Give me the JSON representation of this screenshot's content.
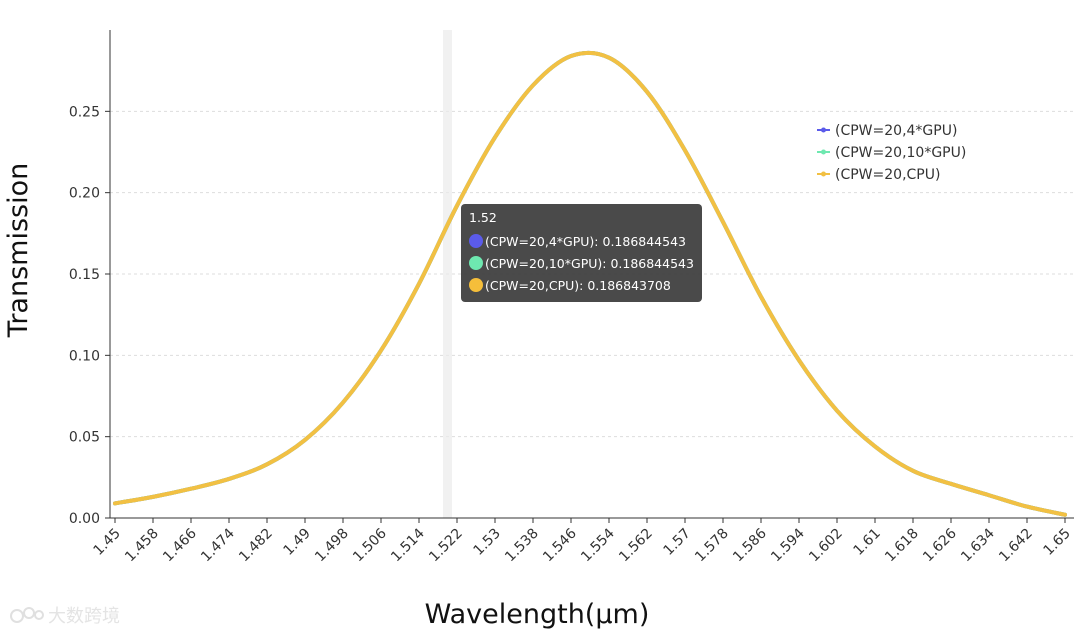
{
  "chart_data": {
    "type": "line",
    "title": "",
    "xlabel": "Wavelength(μm)",
    "ylabel": "Transmission",
    "categories": [
      "1.45",
      "1.458",
      "1.466",
      "1.474",
      "1.482",
      "1.49",
      "1.498",
      "1.506",
      "1.514",
      "1.522",
      "1.53",
      "1.538",
      "1.546",
      "1.554",
      "1.562",
      "1.57",
      "1.578",
      "1.586",
      "1.594",
      "1.602",
      "1.61",
      "1.618",
      "1.626",
      "1.634",
      "1.642",
      "1.65"
    ],
    "x_range": [
      1.45,
      1.65
    ],
    "ylim": [
      0,
      0.3
    ],
    "y_ticks": [
      0.0,
      0.05,
      0.1,
      0.15,
      0.2,
      0.25
    ],
    "y_tick_labels": [
      "0.00",
      "0.05",
      "0.10",
      "0.15",
      "0.20",
      "0.25"
    ],
    "grid": "horizontal dashed",
    "legend_position": "top-right",
    "x": [
      1.45,
      1.458,
      1.466,
      1.474,
      1.482,
      1.49,
      1.498,
      1.506,
      1.514,
      1.522,
      1.53,
      1.538,
      1.546,
      1.554,
      1.562,
      1.57,
      1.578,
      1.586,
      1.594,
      1.602,
      1.61,
      1.618,
      1.626,
      1.634,
      1.642,
      1.65
    ],
    "series": [
      {
        "name": "(CPW=20,4*GPU)",
        "color": "#5b5bea",
        "values": [
          0.009,
          0.013,
          0.018,
          0.024,
          0.033,
          0.048,
          0.071,
          0.103,
          0.144,
          0.192,
          0.234,
          0.266,
          0.284,
          0.283,
          0.262,
          0.226,
          0.182,
          0.136,
          0.097,
          0.066,
          0.044,
          0.029,
          0.021,
          0.014,
          0.007,
          0.002
        ]
      },
      {
        "name": "(CPW=20,10*GPU)",
        "color": "#6ee8b0",
        "values": [
          0.009,
          0.013,
          0.018,
          0.024,
          0.033,
          0.048,
          0.071,
          0.103,
          0.144,
          0.192,
          0.234,
          0.266,
          0.284,
          0.283,
          0.262,
          0.226,
          0.182,
          0.136,
          0.097,
          0.066,
          0.044,
          0.029,
          0.021,
          0.014,
          0.007,
          0.002
        ]
      },
      {
        "name": "(CPW=20,CPU)",
        "color": "#f2c043",
        "values": [
          0.009,
          0.013,
          0.018,
          0.024,
          0.033,
          0.048,
          0.071,
          0.103,
          0.144,
          0.192,
          0.234,
          0.266,
          0.284,
          0.283,
          0.262,
          0.226,
          0.182,
          0.136,
          0.097,
          0.066,
          0.044,
          0.029,
          0.021,
          0.014,
          0.007,
          0.002
        ]
      }
    ],
    "hover": {
      "x": 1.52,
      "category_index": 9
    }
  },
  "tooltip": {
    "title": "1.52",
    "rows": [
      {
        "label": "(CPW=20,4*GPU): 0.186844543",
        "color": "#5b5bea"
      },
      {
        "label": "(CPW=20,10*GPU): 0.186844543",
        "color": "#6ee8b0"
      },
      {
        "label": "(CPW=20,CPU): 0.186843708",
        "color": "#f5be3a"
      }
    ]
  },
  "watermark": {
    "text": "大数跨境"
  }
}
